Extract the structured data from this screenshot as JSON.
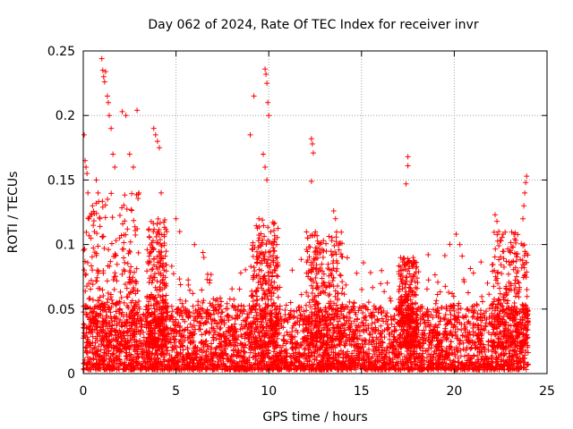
{
  "chart_data": {
    "type": "scatter",
    "title": "Day 062 of 2024, Rate Of TEC Index for receiver invr",
    "xlabel": "GPS time / hours",
    "ylabel": "ROTI / TECUs",
    "xlim": [
      0,
      25
    ],
    "ylim": [
      0,
      0.25
    ],
    "xticks": [
      0,
      5,
      10,
      15,
      20,
      25
    ],
    "xtick_labels": [
      "0",
      "5",
      "10",
      "15",
      "20",
      "25"
    ],
    "yticks": [
      0,
      0.05,
      0.1,
      0.15,
      0.2,
      0.25
    ],
    "ytick_labels": [
      "0",
      "0.05",
      "0.1",
      "0.15",
      "0.2",
      "0.25"
    ],
    "grid": true,
    "marker": "+",
    "series": [
      {
        "name": "ROTI",
        "color": "#ff0000",
        "points": [
          [
            0.05,
            0.185
          ],
          [
            0.1,
            0.165
          ],
          [
            0.15,
            0.16
          ],
          [
            0.2,
            0.155
          ],
          [
            0.25,
            0.14
          ],
          [
            0.3,
            0.12
          ],
          [
            0.5,
            0.13
          ],
          [
            0.6,
            0.11
          ],
          [
            0.7,
            0.15
          ],
          [
            0.8,
            0.14
          ],
          [
            0.9,
            0.12
          ],
          [
            1.0,
            0.244
          ],
          [
            1.05,
            0.235
          ],
          [
            1.1,
            0.23
          ],
          [
            1.15,
            0.226
          ],
          [
            1.2,
            0.234
          ],
          [
            1.3,
            0.215
          ],
          [
            1.35,
            0.21
          ],
          [
            1.4,
            0.2
          ],
          [
            1.5,
            0.19
          ],
          [
            1.6,
            0.17
          ],
          [
            1.7,
            0.16
          ],
          [
            2.1,
            0.203
          ],
          [
            2.3,
            0.2
          ],
          [
            2.5,
            0.17
          ],
          [
            2.7,
            0.16
          ],
          [
            2.9,
            0.204
          ],
          [
            3.0,
            0.14
          ],
          [
            3.8,
            0.19
          ],
          [
            3.9,
            0.185
          ],
          [
            4.0,
            0.18
          ],
          [
            4.1,
            0.175
          ],
          [
            4.2,
            0.14
          ],
          [
            4.5,
            0.11
          ],
          [
            5.0,
            0.12
          ],
          [
            5.2,
            0.11
          ],
          [
            6.0,
            0.1
          ],
          [
            6.5,
            0.09
          ],
          [
            9.2,
            0.215
          ],
          [
            9.0,
            0.185
          ],
          [
            9.8,
            0.236
          ],
          [
            9.85,
            0.232
          ],
          [
            9.9,
            0.225
          ],
          [
            9.95,
            0.21
          ],
          [
            10.0,
            0.2
          ],
          [
            9.7,
            0.17
          ],
          [
            9.8,
            0.16
          ],
          [
            9.9,
            0.15
          ],
          [
            12.3,
            0.182
          ],
          [
            12.35,
            0.178
          ],
          [
            12.4,
            0.171
          ],
          [
            12.3,
            0.149
          ],
          [
            13.5,
            0.126
          ],
          [
            13.6,
            0.12
          ],
          [
            17.5,
            0.168
          ],
          [
            17.5,
            0.161
          ],
          [
            17.4,
            0.147
          ],
          [
            20.1,
            0.108
          ],
          [
            20.3,
            0.1
          ],
          [
            22.2,
            0.123
          ],
          [
            22.3,
            0.118
          ],
          [
            22.4,
            0.11
          ],
          [
            23.9,
            0.153
          ],
          [
            23.85,
            0.148
          ],
          [
            23.8,
            0.14
          ],
          [
            23.75,
            0.13
          ],
          [
            23.7,
            0.12
          ]
        ]
      }
    ],
    "notes": "Dense noise band of '+' markers roughly 0.005-0.05 across 0-24 h with frequent spikes up to ~0.11"
  }
}
